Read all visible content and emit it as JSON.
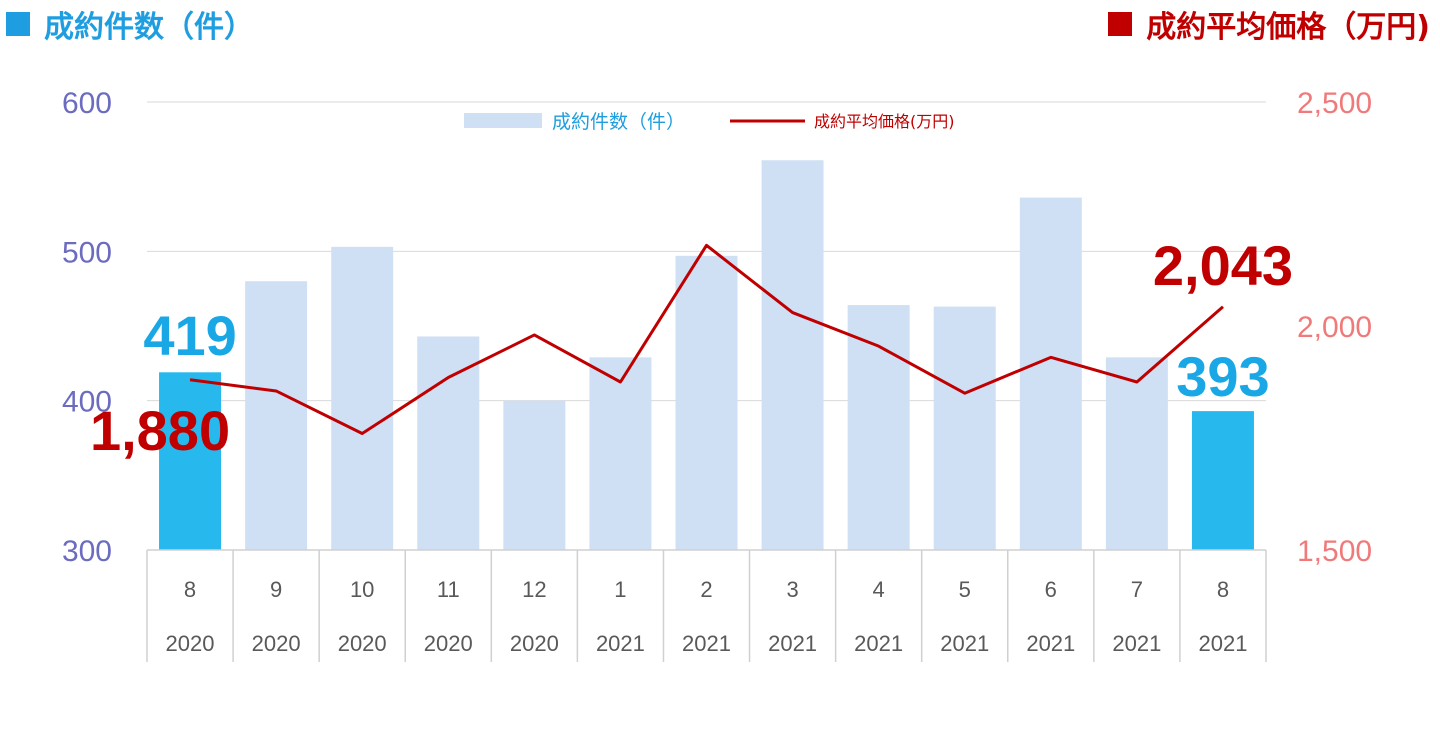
{
  "header": {
    "left_label": "成約件数（件）",
    "right_label": "成約平均価格（万円)"
  },
  "legend": {
    "bar_label": "成約件数（件）",
    "line_label": "成約平均価格(万円)"
  },
  "colors": {
    "left_accent": "#1e9ee0",
    "right_accent": "#c00000",
    "bar_light": "#cfe0f4",
    "bar_highlight": "#27b9ee",
    "line": "#c00000",
    "left_axis_text": "#6b6bc0",
    "right_axis_text": "#f07a7a",
    "bar_callout": "#1aa7e6",
    "line_callout": "#c00000"
  },
  "chart_data": {
    "type": "bar",
    "categories": [
      {
        "month": "8",
        "year": "2020"
      },
      {
        "month": "9",
        "year": "2020"
      },
      {
        "month": "10",
        "year": "2020"
      },
      {
        "month": "11",
        "year": "2020"
      },
      {
        "month": "12",
        "year": "2020"
      },
      {
        "month": "1",
        "year": "2021"
      },
      {
        "month": "2",
        "year": "2021"
      },
      {
        "month": "3",
        "year": "2021"
      },
      {
        "month": "4",
        "year": "2021"
      },
      {
        "month": "5",
        "year": "2021"
      },
      {
        "month": "6",
        "year": "2021"
      },
      {
        "month": "7",
        "year": "2021"
      },
      {
        "month": "8",
        "year": "2021"
      }
    ],
    "series": [
      {
        "name": "成約件数（件）",
        "type": "bar",
        "axis": "left",
        "values": [
          419,
          480,
          503,
          443,
          400,
          429,
          497,
          561,
          464,
          463,
          536,
          429,
          393
        ],
        "highlight_indices": [
          0,
          12
        ]
      },
      {
        "name": "成約平均価格(万円)",
        "type": "line",
        "axis": "right",
        "values": [
          1880,
          1855,
          1760,
          1885,
          1980,
          1875,
          2180,
          2030,
          1955,
          1850,
          1930,
          1875,
          2043
        ]
      }
    ],
    "left_axis": {
      "ylim": [
        300,
        600
      ],
      "ticks": [
        "300",
        "400",
        "500",
        "600"
      ],
      "tick_values": [
        300,
        400,
        500,
        600
      ]
    },
    "right_axis": {
      "ylim": [
        1500,
        2500
      ],
      "ticks": [
        "1,500",
        "2,000",
        "2,500"
      ],
      "tick_values": [
        1500,
        2000,
        2500
      ]
    },
    "grid": true,
    "legend_position": "top-center",
    "callouts": [
      {
        "series": 0,
        "index": 0,
        "label": "419"
      },
      {
        "series": 0,
        "index": 12,
        "label": "393"
      },
      {
        "series": 1,
        "index": 0,
        "label": "1,880"
      },
      {
        "series": 1,
        "index": 12,
        "label": "2,043"
      }
    ]
  }
}
